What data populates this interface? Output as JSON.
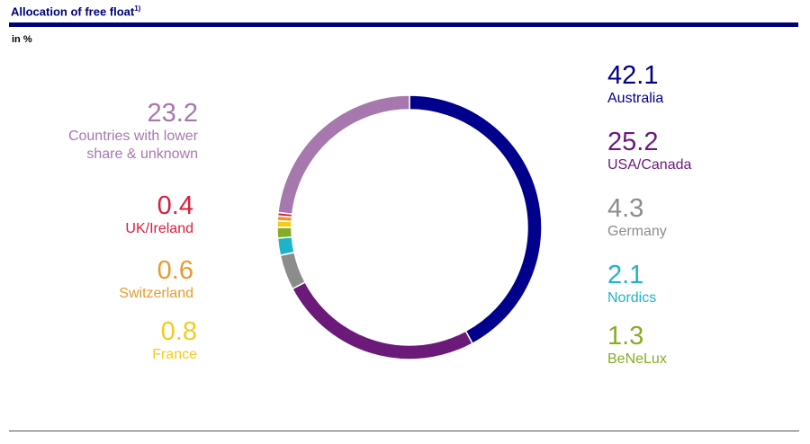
{
  "header": {
    "title": "Allocation of free float",
    "title_note": "1)",
    "unit": "in %"
  },
  "chart_data": {
    "type": "pie",
    "variant": "donut",
    "title": "Allocation of free float",
    "unit": "in %",
    "slices": [
      {
        "label": "Australia",
        "value": 42.1,
        "color": "#00008c"
      },
      {
        "label": "USA/Canada",
        "value": 25.2,
        "color": "#6b1a7a"
      },
      {
        "label": "Germany",
        "value": 4.3,
        "color": "#8c8c8c"
      },
      {
        "label": "Nordics",
        "value": 2.1,
        "color": "#1fb3c9"
      },
      {
        "label": "BeNeLux",
        "value": 1.3,
        "color": "#86ac26"
      },
      {
        "label": "France",
        "value": 0.8,
        "color": "#f2cc1f"
      },
      {
        "label": "Switzerland",
        "value": 0.6,
        "color": "#e89a2e"
      },
      {
        "label": "UK/Ireland",
        "value": 0.4,
        "color": "#d9203e"
      },
      {
        "label": "Countries with lower share & unknown",
        "value": 23.2,
        "color": "#a678ae"
      }
    ],
    "value_labels": [
      "42.1",
      "25.2",
      "4.3",
      "2.1",
      "1.3",
      "0.8",
      "0.6",
      "0.4",
      "23.2"
    ],
    "legend_lines": {
      "other_line1": "Countries with lower",
      "other_line2": "share & unknown"
    }
  }
}
